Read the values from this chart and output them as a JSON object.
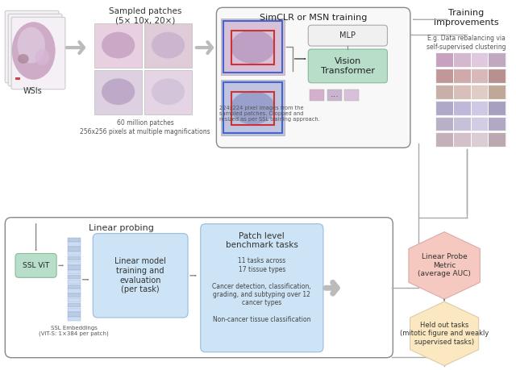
{
  "bg_color": "#ffffff",
  "top": {
    "wsi_label": "WSIs",
    "patches_label": "Sampled patches\n(5× 10x, 20×)",
    "patches_sublabel": "60 million patches\n256x256 pixels at multiple magnifications",
    "training_label": "SimCLR or MSN training",
    "mlp_label": "MLP",
    "vit_label": "Vision\nTransformer",
    "vit_caption": "224x224 pixel images from the\nsampled patches. Cropped and\nresized as per SSL training approach.",
    "ti_label": "Training\nimprovements",
    "ti_sublabel": "E.g. Data rebalancing via\nself-supervised clustering"
  },
  "bottom": {
    "lp_outer_label": "Linear probing",
    "ssl_vit_label": "SSL ViT",
    "linear_model_label": "Linear model\ntraining and\nevaluation\n(per task)",
    "embed_label": "SSL Embeddings\n(ViT-S: 1×384 per patch)",
    "patch_tasks_title": "Patch level\nbenchmark tasks",
    "patch_tasks_body": "11 tasks across\n17 tissue types\n\nCancer detection, classification,\ngrading, and subtyping over 12\ncancer types\n\nNon-cancer tissue classification",
    "lpm_label": "Linear Probe\nMetric\n(average AUC)",
    "hot_label": "Held out tasks\n(mitotic figure and weakly\nsupervised tasks)"
  }
}
